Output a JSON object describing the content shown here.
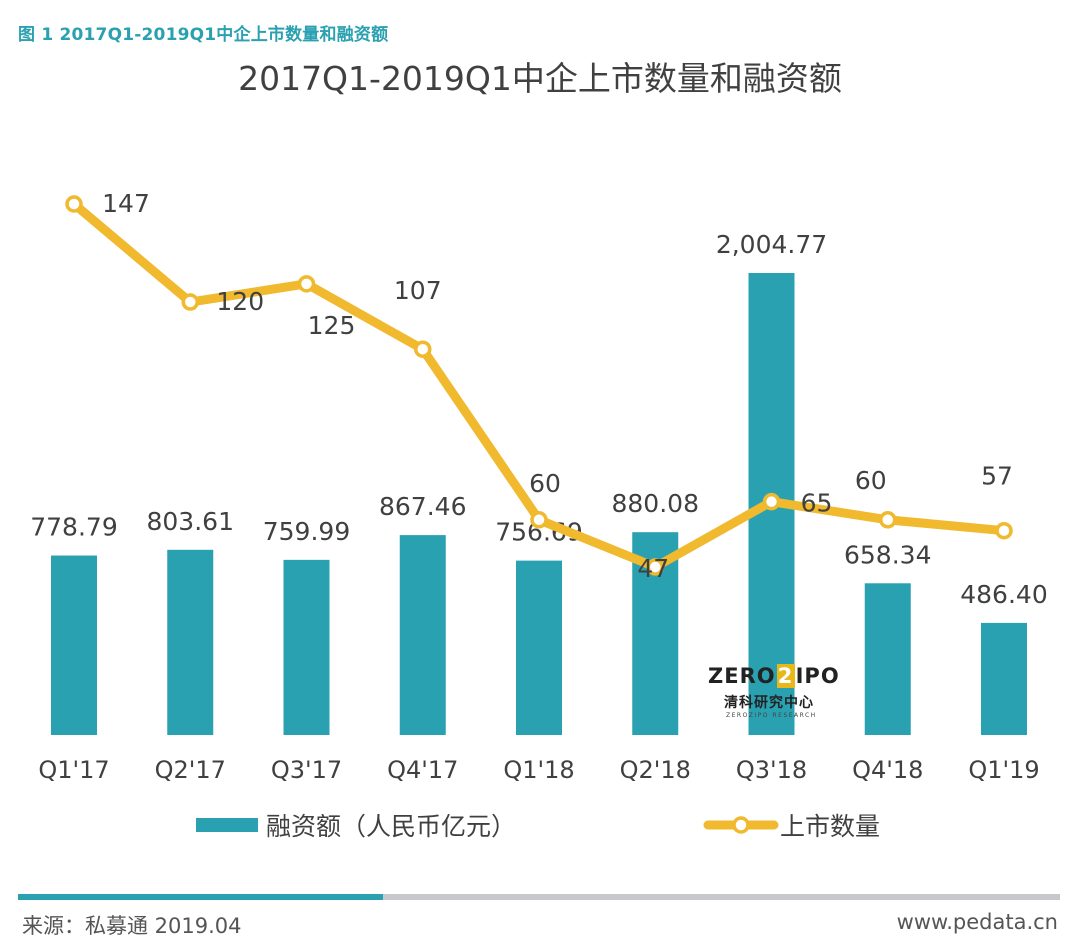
{
  "figure_caption": "图 1 2017Q1-2019Q1中企上市数量和融资额",
  "chart_data": {
    "type": "bar",
    "title": "2017Q1-2019Q1中企上市数量和融资额",
    "categories": [
      "Q1'17",
      "Q2'17",
      "Q3'17",
      "Q4'17",
      "Q1'18",
      "Q2'18",
      "Q3'18",
      "Q4'18",
      "Q1'19"
    ],
    "series": [
      {
        "name": "融资额（人民币亿元）",
        "type": "bar",
        "color": "#2aa1b1",
        "values": [
          778.79,
          803.61,
          759.99,
          867.46,
          756.69,
          880.08,
          2004.77,
          658.34,
          486.4
        ],
        "labels": [
          "778.79",
          "803.61",
          "759.99",
          "867.46",
          "756.69",
          "880.08",
          "2,004.77",
          "658.34",
          "486.40"
        ]
      },
      {
        "name": "上市数量",
        "type": "line",
        "color": "#f0b92e",
        "values": [
          147,
          120,
          125,
          107,
          60,
          47,
          65,
          60,
          57
        ],
        "labels": [
          "147",
          "120",
          "125",
          "107",
          "60",
          "47",
          "65",
          "60",
          "57"
        ]
      }
    ],
    "legend": "bottom",
    "grid": false
  },
  "watermark": {
    "brand_left": "ZERO",
    "brand_mid": "2",
    "brand_right": "IPO",
    "cn": "清科研究中心",
    "en": "ZEROZIPO RESEARCH"
  },
  "footer": {
    "source": "来源：私募通 2019.04",
    "site": "www.pedata.cn",
    "progress_fraction": 0.35
  }
}
